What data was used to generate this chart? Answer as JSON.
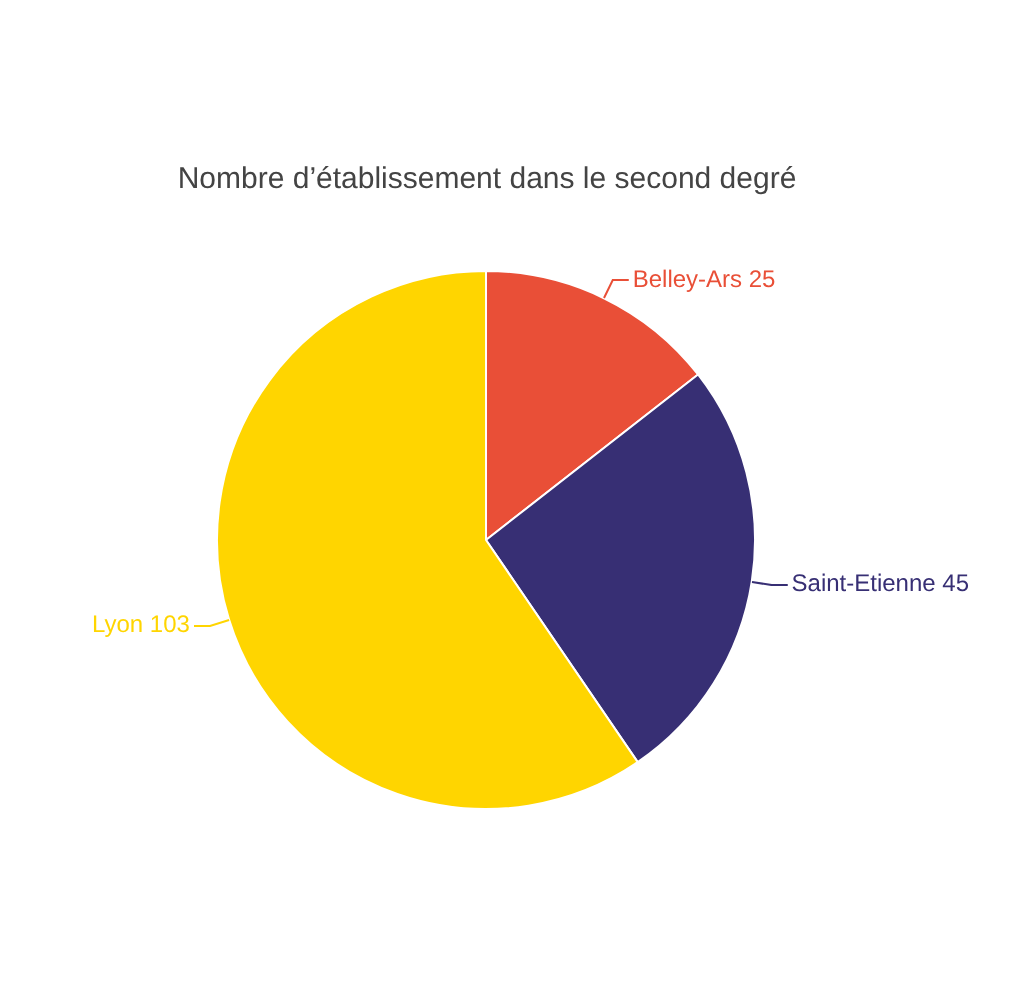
{
  "chart_data": {
    "type": "pie",
    "title": "Nombre d’établissement dans le second degré",
    "categories": [
      "Belley-Ars",
      "Saint-Etienne",
      "Lyon"
    ],
    "values": [
      25,
      45,
      103
    ],
    "colors": [
      "#e94f37",
      "#372f74",
      "#ffd500"
    ],
    "data_labels": true,
    "legend": false
  }
}
